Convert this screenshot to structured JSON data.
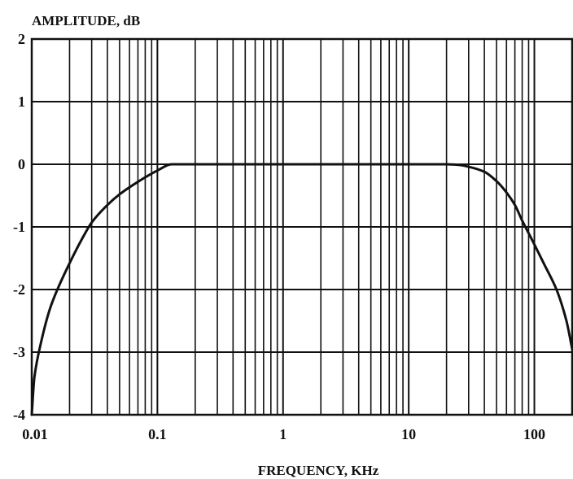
{
  "chart_data": {
    "type": "line",
    "title": "",
    "ylabel": "AMPLITUDE, dB",
    "xlabel": "FREQUENCY, KHz",
    "x_scale": "log",
    "xlim": [
      0.01,
      200
    ],
    "ylim": [
      -4,
      2
    ],
    "grid": true,
    "legend": "none",
    "x_ticks": [
      {
        "value": 0.01,
        "label": "0.01"
      },
      {
        "value": 0.1,
        "label": "0.1"
      },
      {
        "value": 1,
        "label": "1"
      },
      {
        "value": 10,
        "label": "10"
      },
      {
        "value": 100,
        "label": "100"
      }
    ],
    "y_ticks": [
      {
        "value": 2,
        "label": "2"
      },
      {
        "value": 1,
        "label": "1"
      },
      {
        "value": 0,
        "label": "0"
      },
      {
        "value": -1,
        "label": "-1"
      },
      {
        "value": -2,
        "label": "-2"
      },
      {
        "value": -3,
        "label": "-3"
      },
      {
        "value": -4,
        "label": "-4"
      }
    ],
    "series": [
      {
        "color": "#111111",
        "points": [
          [
            0.01,
            -4.0
          ],
          [
            0.0105,
            -3.4
          ],
          [
            0.012,
            -2.8
          ],
          [
            0.014,
            -2.3
          ],
          [
            0.016,
            -2.0
          ],
          [
            0.02,
            -1.58
          ],
          [
            0.025,
            -1.2
          ],
          [
            0.03,
            -0.93
          ],
          [
            0.04,
            -0.65
          ],
          [
            0.05,
            -0.48
          ],
          [
            0.07,
            -0.28
          ],
          [
            0.1,
            -0.1
          ],
          [
            0.13,
            0.0
          ],
          [
            0.2,
            0.0
          ],
          [
            1,
            0.0
          ],
          [
            10,
            0.0
          ],
          [
            20,
            0.0
          ],
          [
            25,
            -0.01
          ],
          [
            30,
            -0.04
          ],
          [
            40,
            -0.12
          ],
          [
            50,
            -0.27
          ],
          [
            60,
            -0.45
          ],
          [
            70,
            -0.65
          ],
          [
            80,
            -0.9
          ],
          [
            90,
            -1.1
          ],
          [
            100,
            -1.28
          ],
          [
            120,
            -1.6
          ],
          [
            150,
            -2.0
          ],
          [
            180,
            -2.5
          ],
          [
            200,
            -2.95
          ]
        ]
      }
    ]
  },
  "colors": {
    "axis": "#111111",
    "grid": "#111111",
    "background": "#ffffff"
  }
}
